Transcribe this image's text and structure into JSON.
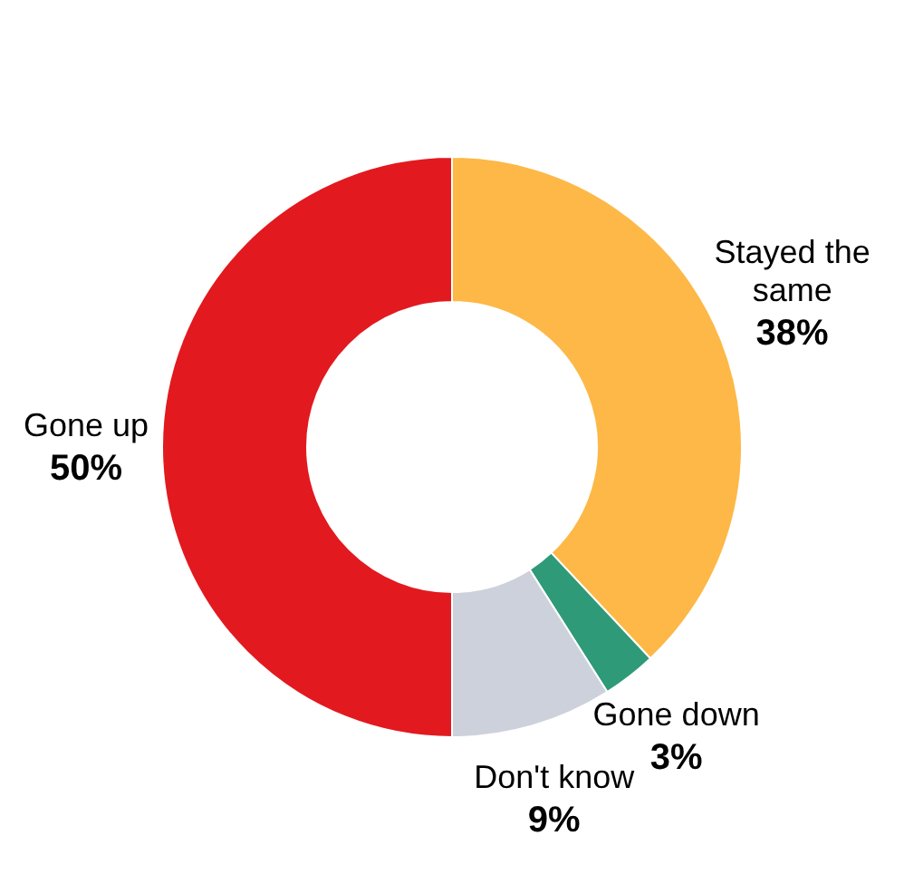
{
  "chart_data": {
    "type": "donut",
    "categories": [
      "Stayed the same",
      "Gone down",
      "Don't know",
      "Gone up"
    ],
    "values": [
      38,
      3,
      9,
      50
    ],
    "colors": [
      "#fdb847",
      "#2e9a78",
      "#cdd1db",
      "#e2191f"
    ],
    "value_labels": [
      "38%",
      "3%",
      "9%",
      "50%"
    ],
    "legend": false
  }
}
